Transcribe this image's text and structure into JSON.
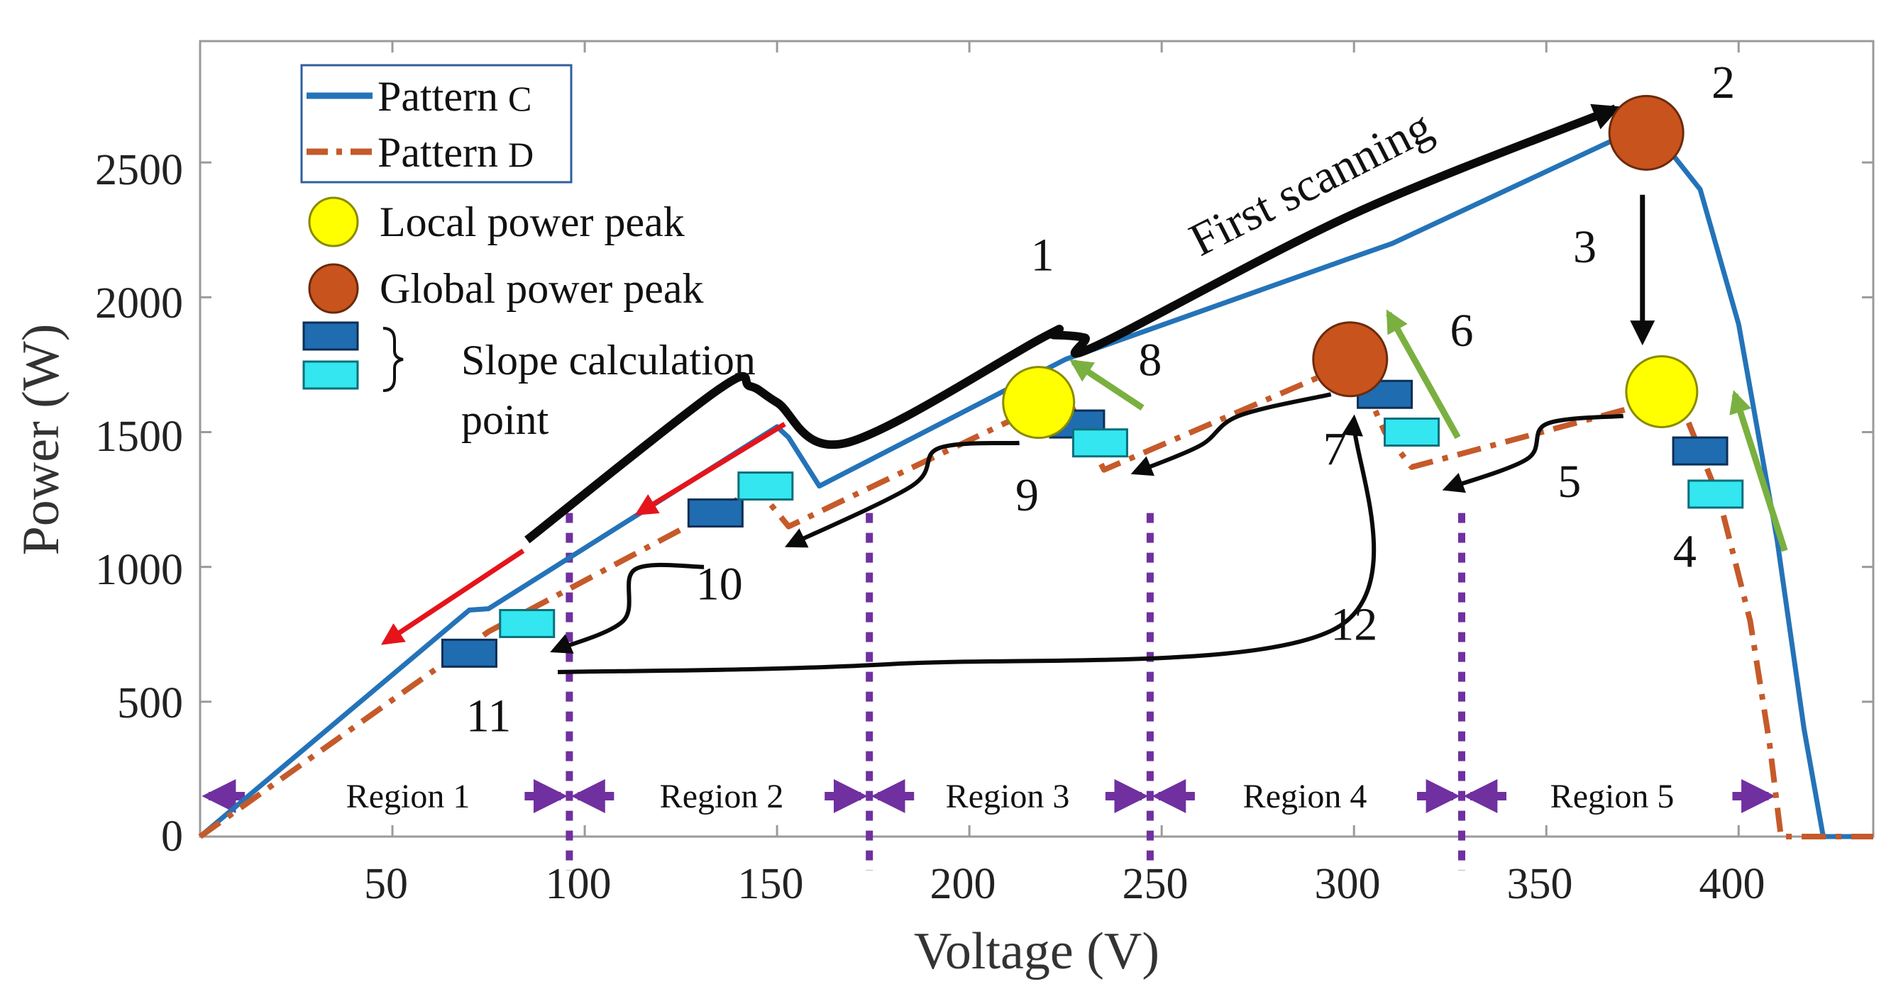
{
  "chart_data": {
    "type": "line",
    "title": "",
    "xlabel": "Voltage (V)",
    "ylabel": "Power (W)",
    "xlim": [
      0,
      435
    ],
    "ylim": [
      0,
      2950
    ],
    "x_ticks": [
      "50",
      "100",
      "150",
      "200",
      "250",
      "300",
      "350",
      "400"
    ],
    "y_ticks": [
      "0",
      "500",
      "1000",
      "1500",
      "2000",
      "2500"
    ],
    "series": [
      {
        "name": "Pattern C",
        "style": "solid",
        "color": "#2473b8",
        "x": [
          0,
          70,
          75,
          150,
          153,
          161,
          225,
          300,
          310,
          370,
          380,
          390,
          400,
          410,
          417,
          422,
          435
        ],
        "y": [
          0,
          840,
          845,
          1520,
          1480,
          1300,
          1770,
          2150,
          2200,
          2600,
          2580,
          2400,
          1900,
          1100,
          400,
          0,
          0
        ]
      },
      {
        "name": "Pattern D",
        "style": "dash-dot",
        "color": "#c55a2a",
        "x": [
          0,
          75,
          145,
          153,
          225,
          235,
          300,
          308,
          315,
          380,
          386,
          395,
          403,
          408,
          411,
          435
        ],
        "y": [
          0,
          760,
          1290,
          1150,
          1640,
          1360,
          1760,
          1500,
          1370,
          1620,
          1570,
          1250,
          800,
          350,
          0,
          0
        ]
      }
    ],
    "legend": {
      "placement": "top-left",
      "pattern_prefix": "Pattern",
      "pattern_c_letter": "C",
      "pattern_d_letter": "D",
      "local_peak": "Local power peak",
      "global_peak": "Global power peak",
      "slope_line1": "Slope calculation",
      "slope_line2": "point"
    },
    "local_peaks": [
      {
        "x": 218,
        "y": 1610
      },
      {
        "x": 380,
        "y": 1650
      }
    ],
    "global_peaks": [
      {
        "x": 376,
        "y": 2610
      },
      {
        "x": 299,
        "y": 1770
      }
    ],
    "slope_points": [
      {
        "x": 70,
        "y": 680,
        "shade": "dark"
      },
      {
        "x": 85,
        "y": 790,
        "shade": "light"
      },
      {
        "x": 134,
        "y": 1200,
        "shade": "dark"
      },
      {
        "x": 147,
        "y": 1300,
        "shade": "light"
      },
      {
        "x": 228,
        "y": 1530,
        "shade": "dark"
      },
      {
        "x": 234,
        "y": 1460,
        "shade": "light"
      },
      {
        "x": 308,
        "y": 1640,
        "shade": "dark"
      },
      {
        "x": 315,
        "y": 1500,
        "shade": "light"
      },
      {
        "x": 390,
        "y": 1430,
        "shade": "dark"
      },
      {
        "x": 394,
        "y": 1270,
        "shade": "light"
      }
    ],
    "region_bounds": [
      0,
      96,
      174,
      247,
      328,
      410
    ],
    "regions": [
      "Region 1",
      "Region 2",
      "Region 3",
      "Region 4",
      "Region 5"
    ],
    "region_level": 150,
    "step_labels": [
      {
        "text": "1",
        "x": 219,
        "y": 2100
      },
      {
        "text": "First scanning",
        "x": 260,
        "y": 2150,
        "angle": -27
      },
      {
        "text": "2",
        "x": 396,
        "y": 2740
      },
      {
        "text": "3",
        "x": 360,
        "y": 2130
      },
      {
        "text": "4",
        "x": 386,
        "y": 1000
      },
      {
        "text": "5",
        "x": 356,
        "y": 1260
      },
      {
        "text": "6",
        "x": 328,
        "y": 1820
      },
      {
        "text": "7",
        "x": 295,
        "y": 1380
      },
      {
        "text": "8",
        "x": 247,
        "y": 1710
      },
      {
        "text": "9",
        "x": 215,
        "y": 1210
      },
      {
        "text": "10",
        "x": 135,
        "y": 880
      },
      {
        "text": "11",
        "x": 75,
        "y": 390
      },
      {
        "text": "12",
        "x": 300,
        "y": 730
      }
    ],
    "step_arrows": {
      "first_scanning": [
        [
          85,
          1100
        ],
        [
          135,
          1660
        ],
        [
          143,
          1670
        ],
        [
          150,
          1610
        ],
        [
          168,
          1460
        ],
        [
          219,
          1850
        ],
        [
          222,
          1860
        ],
        [
          230,
          1850
        ],
        [
          233,
          1820
        ],
        [
          300,
          2310
        ],
        [
          368,
          2700
        ]
      ],
      "step_3": [
        [
          375,
          2380
        ],
        [
          375,
          1840
        ]
      ],
      "step_5": [
        [
          370,
          1560
        ],
        [
          350,
          1530
        ],
        [
          345,
          1400
        ],
        [
          324,
          1290
        ]
      ],
      "step_7": [
        [
          294,
          1640
        ],
        [
          270,
          1560
        ],
        [
          260,
          1450
        ],
        [
          243,
          1350
        ]
      ],
      "step_9": [
        [
          213,
          1460
        ],
        [
          192,
          1440
        ],
        [
          185,
          1300
        ],
        [
          153,
          1080
        ]
      ],
      "step_10": [
        [
          131,
          1000
        ],
        [
          113,
          990
        ],
        [
          110,
          800
        ],
        [
          92,
          690
        ]
      ],
      "step_12": [
        [
          93,
          610
        ],
        [
          180,
          640
        ],
        [
          295,
          770
        ],
        [
          300,
          1550
        ]
      ],
      "red_arrows": [
        [
          [
            84,
            1060
          ],
          [
            48,
            720
          ]
        ],
        [
          [
            152,
            1530
          ],
          [
            114,
            1200
          ]
        ]
      ],
      "green_arrows": [
        [
          [
            245,
            1590
          ],
          [
            227,
            1760
          ]
        ],
        [
          [
            327,
            1480
          ],
          [
            309,
            1940
          ]
        ],
        [
          [
            412,
            1060
          ],
          [
            399,
            1640
          ]
        ]
      ]
    },
    "colors": {
      "pattern_c": "#2473b8",
      "pattern_d": "#c55a2a",
      "local_peak_fill": "#ffff00",
      "local_peak_stroke": "#8a8a00",
      "global_peak_fill": "#c8531d",
      "global_peak_stroke": "#6b2a0c",
      "slope_dark": "#1f6cb0",
      "slope_light": "#33e6f0",
      "black_arrow": "#0a0a0a",
      "red_arrow": "#e5141b",
      "green_arrow": "#7ab040",
      "region_arrow": "#7030a0",
      "region_divider": "#7030a0",
      "legend_border": "#2f5f9e"
    }
  }
}
